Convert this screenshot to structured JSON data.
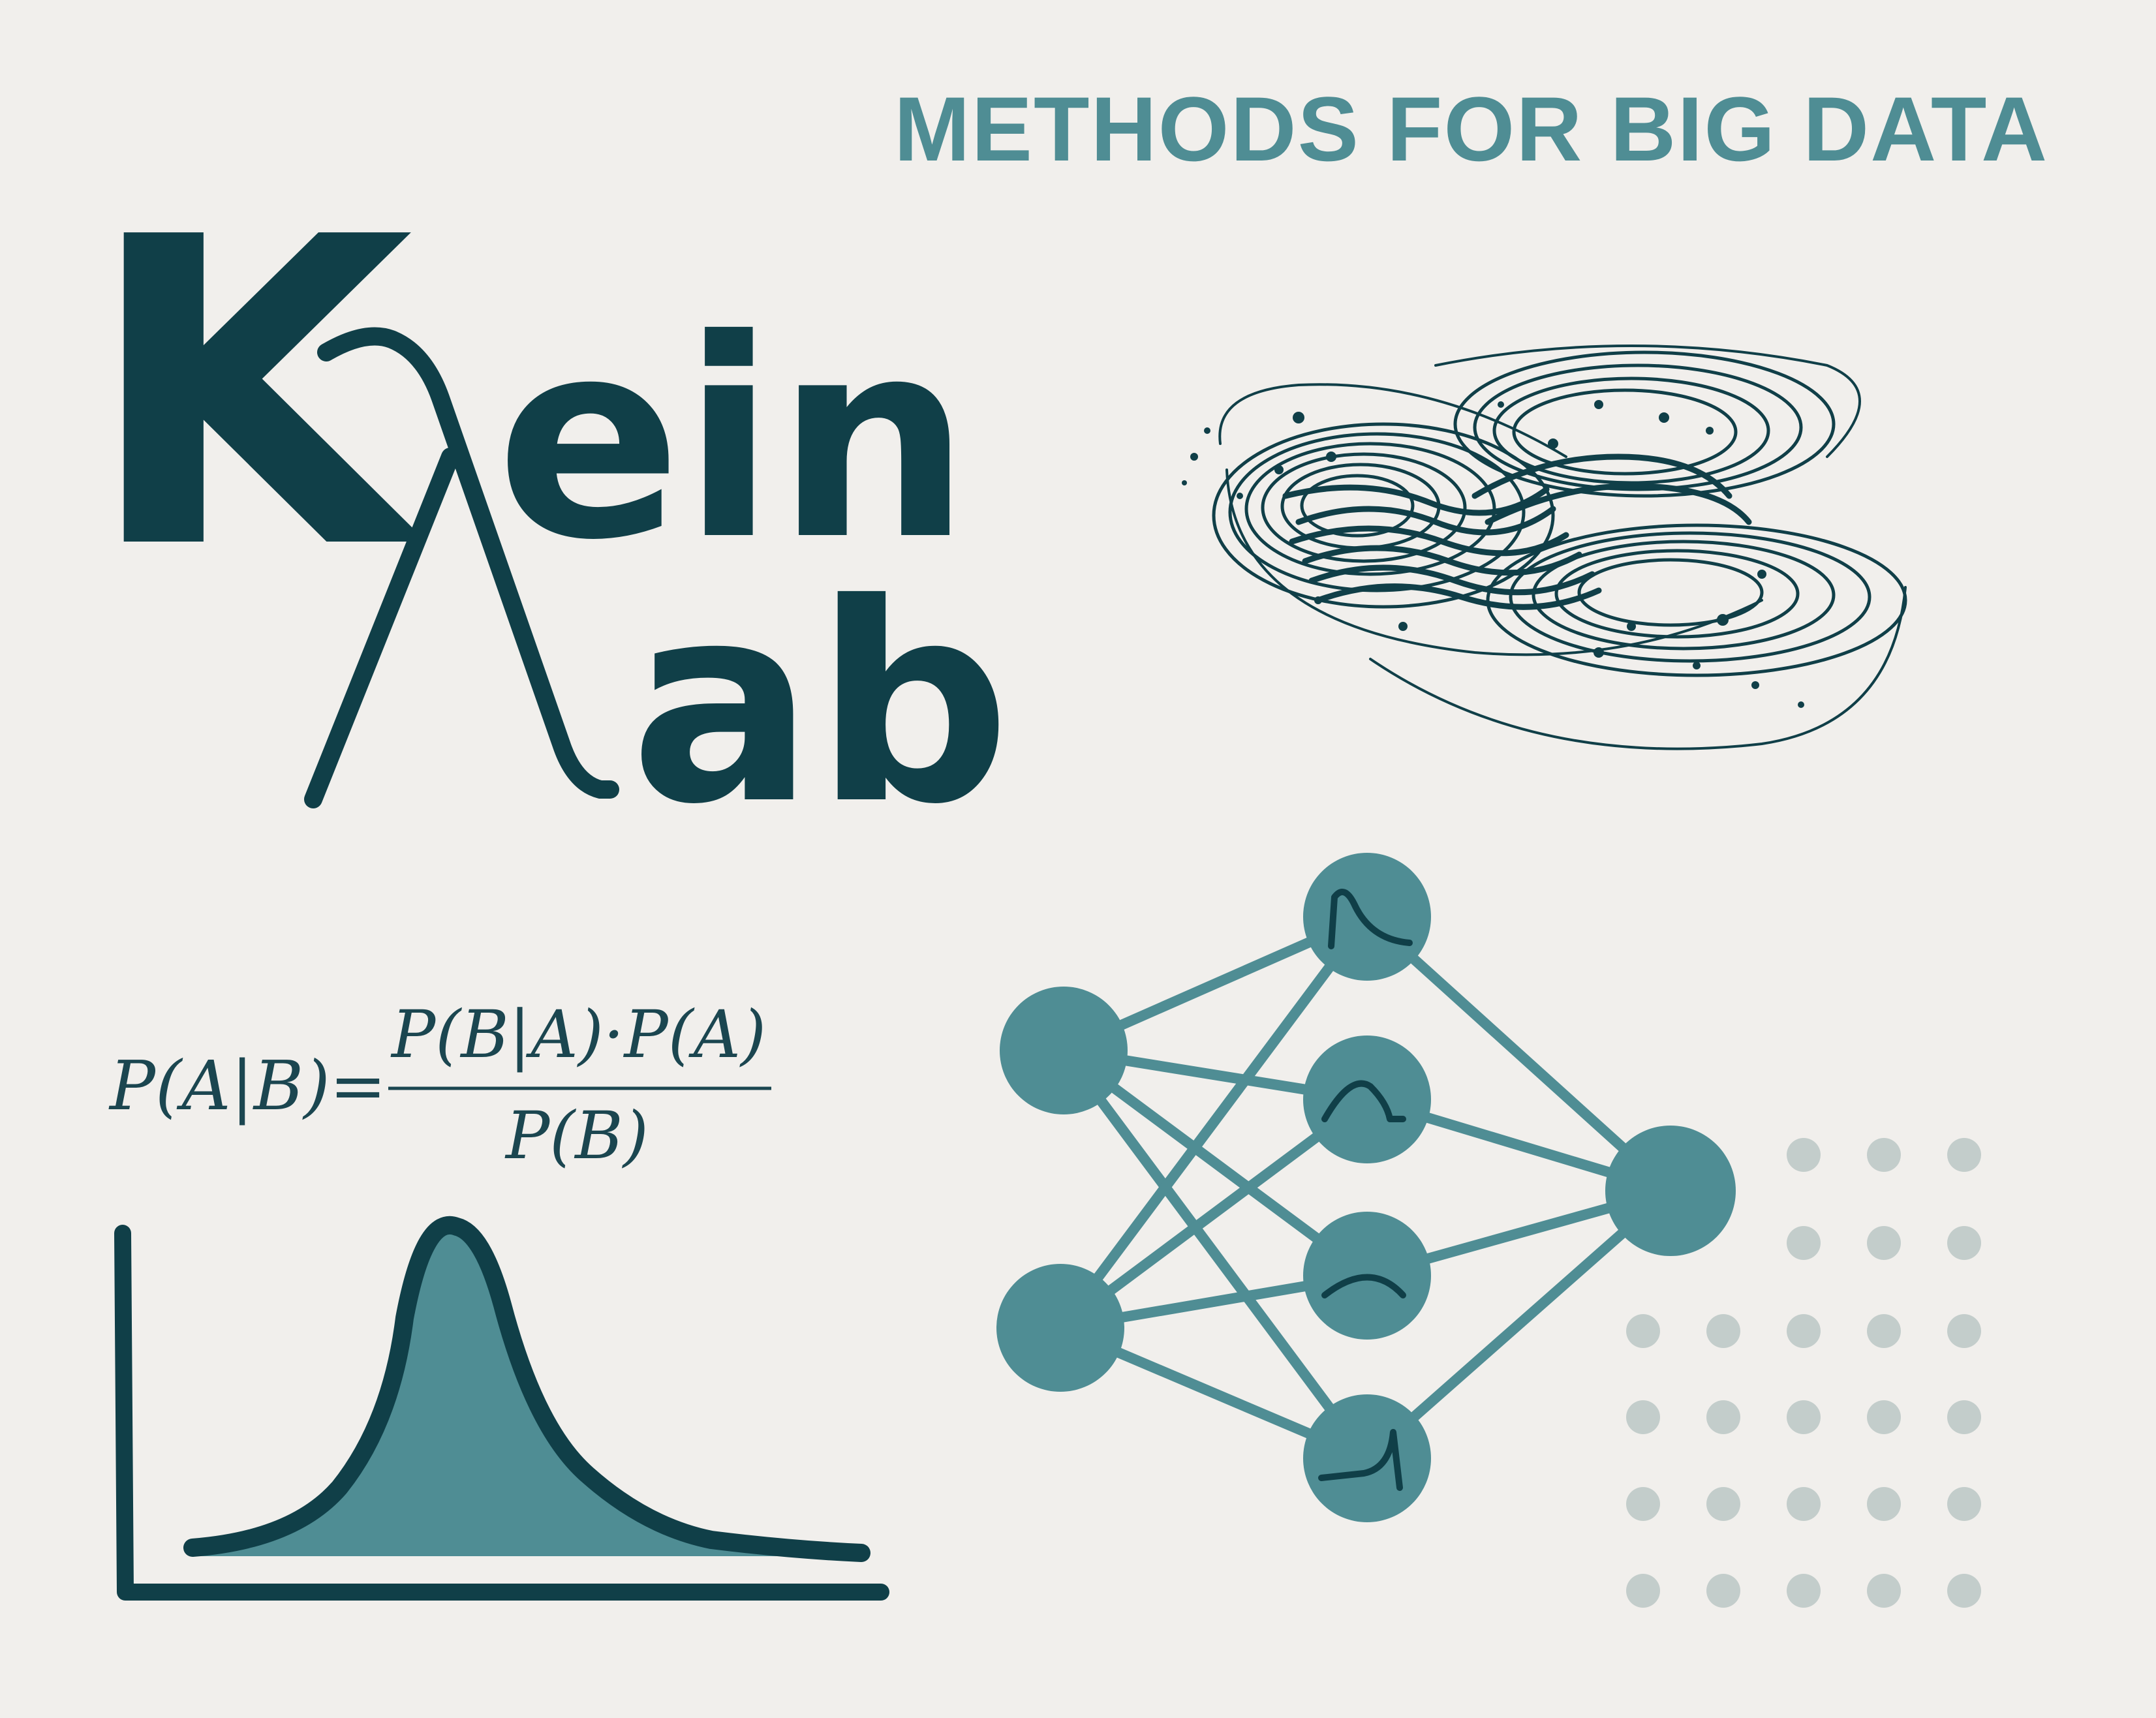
{
  "header": {
    "title": "METHODS FOR BIG DATA"
  },
  "logo": {
    "letter_k": "K",
    "word_ein": "ein",
    "word_ab": "ab",
    "lambda_symbol": "λ",
    "color": "#103f48"
  },
  "formula": {
    "lhs": "P(A|B)",
    "equals": "=",
    "numerator": "P(B|A)·P(A)",
    "denominator": "P(B)"
  },
  "colors": {
    "background": "#f1efec",
    "dark_teal": "#103f48",
    "accent_teal": "#4f8d94",
    "dot_gray": "#c3cdcb"
  },
  "icons": {
    "attractor": "lorenz-attractor-icon",
    "network": "neural-network-icon",
    "distribution": "distribution-curve-icon",
    "dots": "dot-grid-icon"
  }
}
